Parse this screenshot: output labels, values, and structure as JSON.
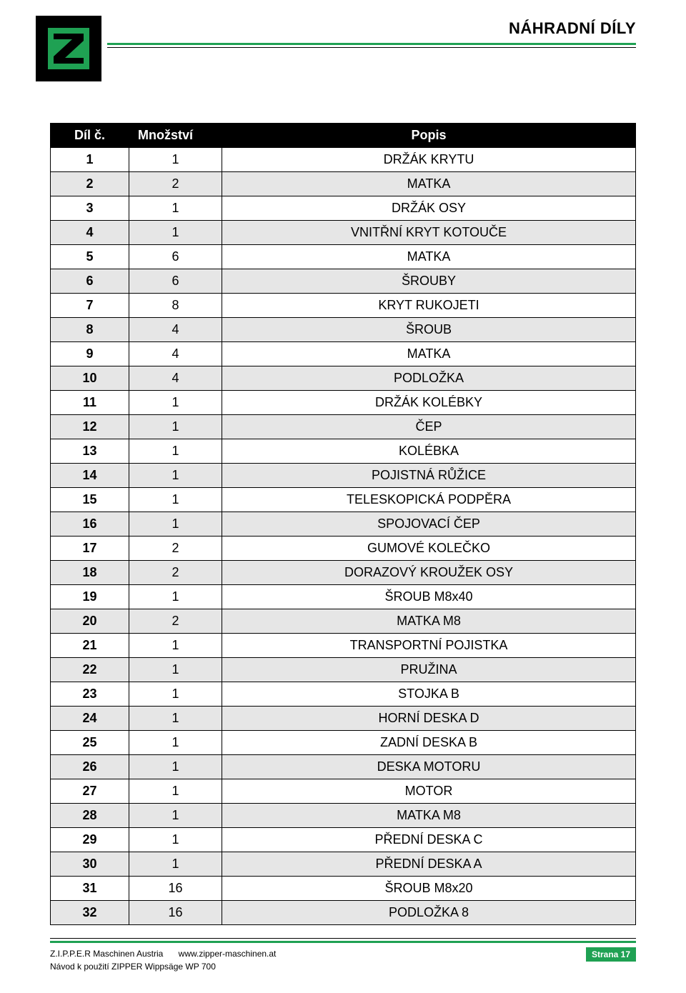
{
  "header": {
    "section_title": "NÁHRADNÍ DÍLY"
  },
  "colors": {
    "green": "#1fa153",
    "black": "#000000",
    "shade": "#e6e6e6",
    "white": "#ffffff"
  },
  "table": {
    "columns": {
      "num": "Díl č.",
      "qty": "Množství",
      "desc": "Popis"
    },
    "rows": [
      {
        "n": "1",
        "q": "1",
        "d": "DRŽÁK KRYTU",
        "shaded": false
      },
      {
        "n": "2",
        "q": "2",
        "d": "MATKA",
        "shaded": true
      },
      {
        "n": "3",
        "q": "1",
        "d": "DRŽÁK OSY",
        "shaded": false
      },
      {
        "n": "4",
        "q": "1",
        "d": "VNITŘNÍ KRYT KOTOUČE",
        "shaded": true
      },
      {
        "n": "5",
        "q": "6",
        "d": "MATKA",
        "shaded": false
      },
      {
        "n": "6",
        "q": "6",
        "d": "ŠROUBY",
        "shaded": true
      },
      {
        "n": "7",
        "q": "8",
        "d": "KRYT RUKOJETI",
        "shaded": false
      },
      {
        "n": "8",
        "q": "4",
        "d": "ŠROUB",
        "shaded": true
      },
      {
        "n": "9",
        "q": "4",
        "d": "MATKA",
        "shaded": false
      },
      {
        "n": "10",
        "q": "4",
        "d": "PODLOŽKA",
        "shaded": true
      },
      {
        "n": "11",
        "q": "1",
        "d": "DRŽÁK KOLÉBKY",
        "shaded": false
      },
      {
        "n": "12",
        "q": "1",
        "d": "ČEP",
        "shaded": true
      },
      {
        "n": "13",
        "q": "1",
        "d": "KOLÉBKA",
        "shaded": false
      },
      {
        "n": "14",
        "q": "1",
        "d": "POJISTNÁ RŮŽICE",
        "shaded": true
      },
      {
        "n": "15",
        "q": "1",
        "d": "TELESKOPICKÁ PODPĚRA",
        "shaded": false
      },
      {
        "n": "16",
        "q": "1",
        "d": "SPOJOVACÍ ČEP",
        "shaded": true
      },
      {
        "n": "17",
        "q": "2",
        "d": "GUMOVÉ KOLEČKO",
        "shaded": false
      },
      {
        "n": "18",
        "q": "2",
        "d": "DORAZOVÝ KROUŽEK OSY",
        "shaded": true
      },
      {
        "n": "19",
        "q": "1",
        "d": "ŠROUB M8x40",
        "shaded": false
      },
      {
        "n": "20",
        "q": "2",
        "d": "MATKA M8",
        "shaded": true
      },
      {
        "n": "21",
        "q": "1",
        "d": "TRANSPORTNÍ POJISTKA",
        "shaded": false
      },
      {
        "n": "22",
        "q": "1",
        "d": "PRUŽINA",
        "shaded": true
      },
      {
        "n": "23",
        "q": "1",
        "d": "STOJKA B",
        "shaded": false
      },
      {
        "n": "24",
        "q": "1",
        "d": "HORNÍ DESKA D",
        "shaded": true
      },
      {
        "n": "25",
        "q": "1",
        "d": "ZADNÍ DESKA B",
        "shaded": false
      },
      {
        "n": "26",
        "q": "1",
        "d": "DESKA MOTORU",
        "shaded": true
      },
      {
        "n": "27",
        "q": "1",
        "d": "MOTOR",
        "shaded": false
      },
      {
        "n": "28",
        "q": "1",
        "d": "MATKA M8",
        "shaded": true
      },
      {
        "n": "29",
        "q": "1",
        "d": "PŘEDNÍ DESKA C",
        "shaded": false
      },
      {
        "n": "30",
        "q": "1",
        "d": "PŘEDNÍ DESKA A",
        "shaded": true
      },
      {
        "n": "31",
        "q": "16",
        "d": "ŠROUB M8x20",
        "shaded": false
      },
      {
        "n": "32",
        "q": "16",
        "d": "PODLOŽKA 8",
        "shaded": true
      }
    ]
  },
  "footer": {
    "company": "Z.I.P.P.E.R Maschinen Austria",
    "url": "www.zipper-maschinen.at",
    "manual": "Návod k použití ZIPPER Wippsäge WP 700",
    "page_label": "Strana 17"
  }
}
